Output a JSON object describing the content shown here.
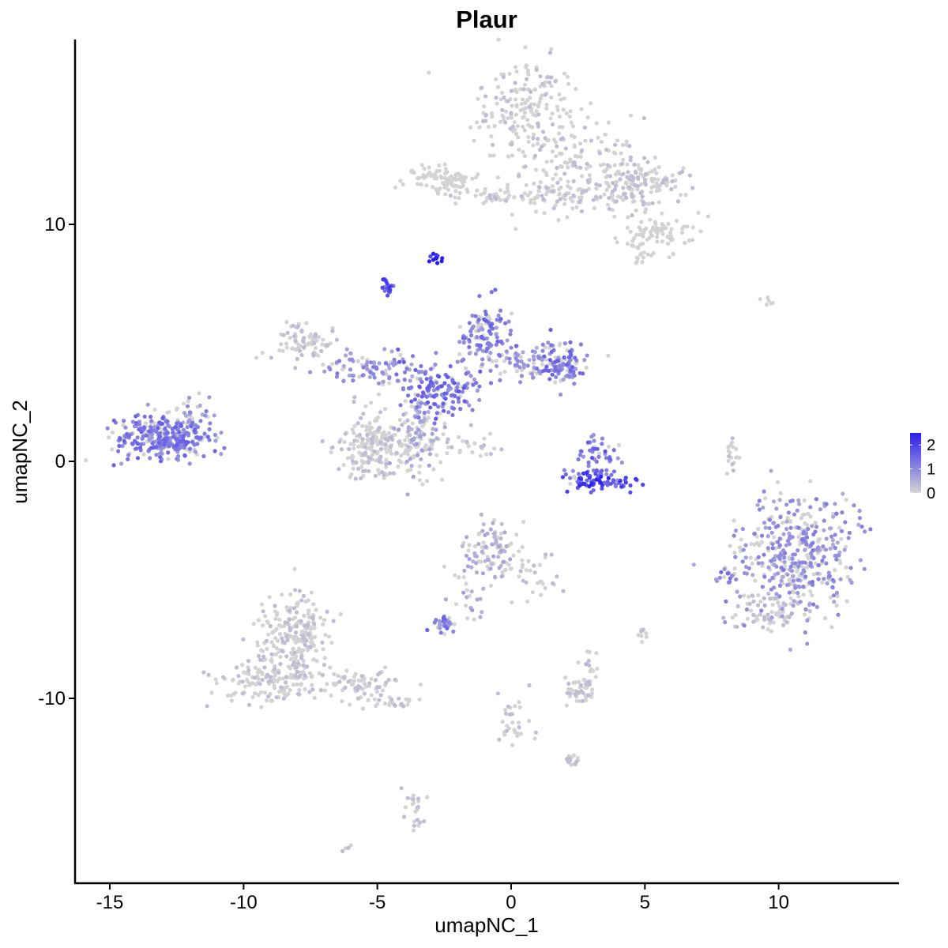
{
  "chart_data": {
    "type": "scatter",
    "title": "Plaur",
    "xlabel": "umapNC_1",
    "ylabel": "umapNC_2",
    "xlim": [
      -16.3,
      14.5
    ],
    "ylim": [
      -17.8,
      17.8
    ],
    "x_ticks": [
      -15,
      -10,
      -5,
      0,
      5,
      10
    ],
    "y_ticks": [
      10,
      0,
      -10
    ],
    "x_tick_labels": [
      "-15",
      "-10",
      "-5",
      "0",
      "5",
      "10"
    ],
    "y_tick_labels": [
      "10",
      "0",
      "-10"
    ],
    "grid": false,
    "legend": {
      "position": "right",
      "values": [
        "2",
        "1",
        "0"
      ]
    },
    "colors": {
      "low": "#d3d3d3",
      "high": "#2a1df0",
      "axis": "#000000"
    },
    "color_range": [
      0,
      2.5
    ],
    "clusters": [
      {
        "x": 0.7,
        "y": 15.0,
        "sx": 0.9,
        "sy": 1.0,
        "n": 180,
        "expr": 0.08
      },
      {
        "x": 2.6,
        "y": 12.5,
        "sx": 1.1,
        "sy": 1.0,
        "n": 160,
        "expr": 0.07
      },
      {
        "x": 4.8,
        "y": 11.8,
        "sx": 0.9,
        "sy": 0.5,
        "n": 140,
        "expr": 0.05
      },
      {
        "x": 5.5,
        "y": 9.7,
        "sx": 0.6,
        "sy": 0.4,
        "n": 70,
        "expr": 0.03
      },
      {
        "x": 4.8,
        "y": 8.9,
        "sx": 0.3,
        "sy": 0.3,
        "n": 20,
        "expr": 0.02
      },
      {
        "x": -2.6,
        "y": 11.9,
        "sx": 0.7,
        "sy": 0.3,
        "n": 90,
        "expr": 0.04
      },
      {
        "x": -0.4,
        "y": 11.2,
        "sx": 1.0,
        "sy": 0.15,
        "n": 40,
        "expr": 0.06
      },
      {
        "x": 1.5,
        "y": 11.2,
        "sx": 0.8,
        "sy": 0.3,
        "n": 50,
        "expr": 0.05
      },
      {
        "x": -2.8,
        "y": 8.6,
        "sx": 0.12,
        "sy": 0.12,
        "n": 14,
        "expr": 2.5
      },
      {
        "x": -4.6,
        "y": 7.4,
        "sx": 0.15,
        "sy": 0.18,
        "n": 20,
        "expr": 1.6
      },
      {
        "x": -13.0,
        "y": 1.0,
        "sx": 0.9,
        "sy": 0.45,
        "n": 300,
        "expr": 1.15
      },
      {
        "x": -11.9,
        "y": 1.8,
        "sx": 0.35,
        "sy": 0.4,
        "n": 40,
        "expr": 0.9
      },
      {
        "x": -7.7,
        "y": 5.1,
        "sx": 0.6,
        "sy": 0.4,
        "n": 80,
        "expr": 0.12
      },
      {
        "x": -5.3,
        "y": 3.9,
        "sx": 0.9,
        "sy": 0.35,
        "n": 90,
        "expr": 0.9
      },
      {
        "x": -2.6,
        "y": 3.0,
        "sx": 0.8,
        "sy": 0.6,
        "n": 160,
        "expr": 1.25
      },
      {
        "x": -1.0,
        "y": 5.3,
        "sx": 0.5,
        "sy": 0.7,
        "n": 110,
        "expr": 1.15
      },
      {
        "x": 0.7,
        "y": 4.2,
        "sx": 0.9,
        "sy": 0.4,
        "n": 90,
        "expr": 0.8
      },
      {
        "x": 2.0,
        "y": 4.1,
        "sx": 0.45,
        "sy": 0.4,
        "n": 90,
        "expr": 1.15
      },
      {
        "x": -5.2,
        "y": 0.7,
        "sx": 0.6,
        "sy": 0.7,
        "n": 200,
        "expr": 0.1
      },
      {
        "x": -3.5,
        "y": 1.0,
        "sx": 0.45,
        "sy": 0.9,
        "n": 120,
        "expr": 0.55
      },
      {
        "x": -1.5,
        "y": 0.8,
        "sx": 0.6,
        "sy": 0.4,
        "n": 25,
        "expr": 0.05
      },
      {
        "x": 3.2,
        "y": 0.2,
        "sx": 0.5,
        "sy": 0.5,
        "n": 50,
        "expr": 1.3
      },
      {
        "x": 3.2,
        "y": -0.8,
        "sx": 0.7,
        "sy": 0.22,
        "n": 80,
        "expr": 1.75
      },
      {
        "x": 10.7,
        "y": -4.0,
        "sx": 1.1,
        "sy": 1.2,
        "n": 420,
        "expr": 0.9
      },
      {
        "x": 9.7,
        "y": -6.4,
        "sx": 0.7,
        "sy": 0.4,
        "n": 70,
        "expr": 0.25
      },
      {
        "x": 8.0,
        "y": -4.8,
        "sx": 0.2,
        "sy": 0.2,
        "n": 15,
        "expr": 1.1
      },
      {
        "x": -0.8,
        "y": -3.9,
        "sx": 0.5,
        "sy": 0.6,
        "n": 100,
        "expr": 0.5
      },
      {
        "x": 0.8,
        "y": -4.8,
        "sx": 0.45,
        "sy": 0.5,
        "n": 30,
        "expr": 0.15
      },
      {
        "x": -1.5,
        "y": -5.8,
        "sx": 0.35,
        "sy": 0.7,
        "n": 20,
        "expr": 0.6
      },
      {
        "x": -2.5,
        "y": -6.9,
        "sx": 0.25,
        "sy": 0.2,
        "n": 30,
        "expr": 1.3
      },
      {
        "x": -8.0,
        "y": -7.3,
        "sx": 0.65,
        "sy": 0.9,
        "n": 220,
        "expr": 0.1
      },
      {
        "x": -9.0,
        "y": -9.1,
        "sx": 0.85,
        "sy": 0.6,
        "n": 150,
        "expr": 0.1
      },
      {
        "x": -5.6,
        "y": -9.5,
        "sx": 0.9,
        "sy": 0.35,
        "n": 80,
        "expr": 0.07
      },
      {
        "x": -4.3,
        "y": -10.2,
        "sx": 0.35,
        "sy": 0.15,
        "n": 18,
        "expr": 0.12
      },
      {
        "x": 2.6,
        "y": -9.6,
        "sx": 0.3,
        "sy": 0.3,
        "n": 50,
        "expr": 0.12
      },
      {
        "x": 2.9,
        "y": -8.6,
        "sx": 0.15,
        "sy": 0.25,
        "n": 12,
        "expr": 0.3
      },
      {
        "x": 5.0,
        "y": -7.2,
        "sx": 0.1,
        "sy": 0.15,
        "n": 8,
        "expr": 0.05
      },
      {
        "x": 0.0,
        "y": -11.0,
        "sx": 0.4,
        "sy": 0.6,
        "n": 30,
        "expr": 0.1
      },
      {
        "x": 2.2,
        "y": -12.6,
        "sx": 0.2,
        "sy": 0.12,
        "n": 18,
        "expr": 0.05
      },
      {
        "x": -3.6,
        "y": -14.8,
        "sx": 0.2,
        "sy": 0.5,
        "n": 25,
        "expr": 0.2
      },
      {
        "x": -6.1,
        "y": -16.3,
        "sx": 0.1,
        "sy": 0.1,
        "n": 4,
        "expr": 0.3
      },
      {
        "x": 8.3,
        "y": 0.3,
        "sx": 0.15,
        "sy": 0.5,
        "n": 18,
        "expr": 0.1
      },
      {
        "x": 9.6,
        "y": 6.7,
        "sx": 0.25,
        "sy": 0.15,
        "n": 6,
        "expr": 0.05
      }
    ]
  }
}
